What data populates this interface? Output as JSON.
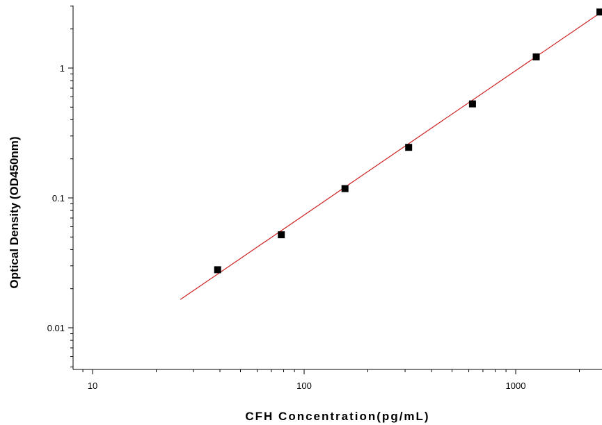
{
  "chart_data": {
    "type": "scatter",
    "title": "",
    "xlabel": "CFH  Concentration(pg/mL)",
    "ylabel": "Optical Density (OD450nm)",
    "xscale": "log",
    "yscale": "log",
    "xlim": [
      8,
      2500
    ],
    "ylim": [
      0.005,
      3
    ],
    "x_ticks": [
      {
        "value": 10,
        "label": "10"
      },
      {
        "value": 100,
        "label": "100"
      },
      {
        "value": 1000,
        "label": "1000"
      }
    ],
    "y_ticks": [
      {
        "value": 0.01,
        "label": "0.01"
      },
      {
        "value": 0.1,
        "label": "0.1"
      },
      {
        "value": 1,
        "label": "1"
      }
    ],
    "grid": false,
    "legend": "none",
    "series": [
      {
        "type": "scatter",
        "marker": "square",
        "color": "#000000",
        "x": [
          39,
          78,
          156,
          312,
          625,
          1250,
          2500
        ],
        "y": [
          0.028,
          0.052,
          0.118,
          0.245,
          0.53,
          1.22,
          2.7
        ]
      },
      {
        "type": "line",
        "color": "#cc2222",
        "x": [
          26,
          2500
        ],
        "y": [
          0.0165,
          2.65
        ]
      }
    ]
  }
}
